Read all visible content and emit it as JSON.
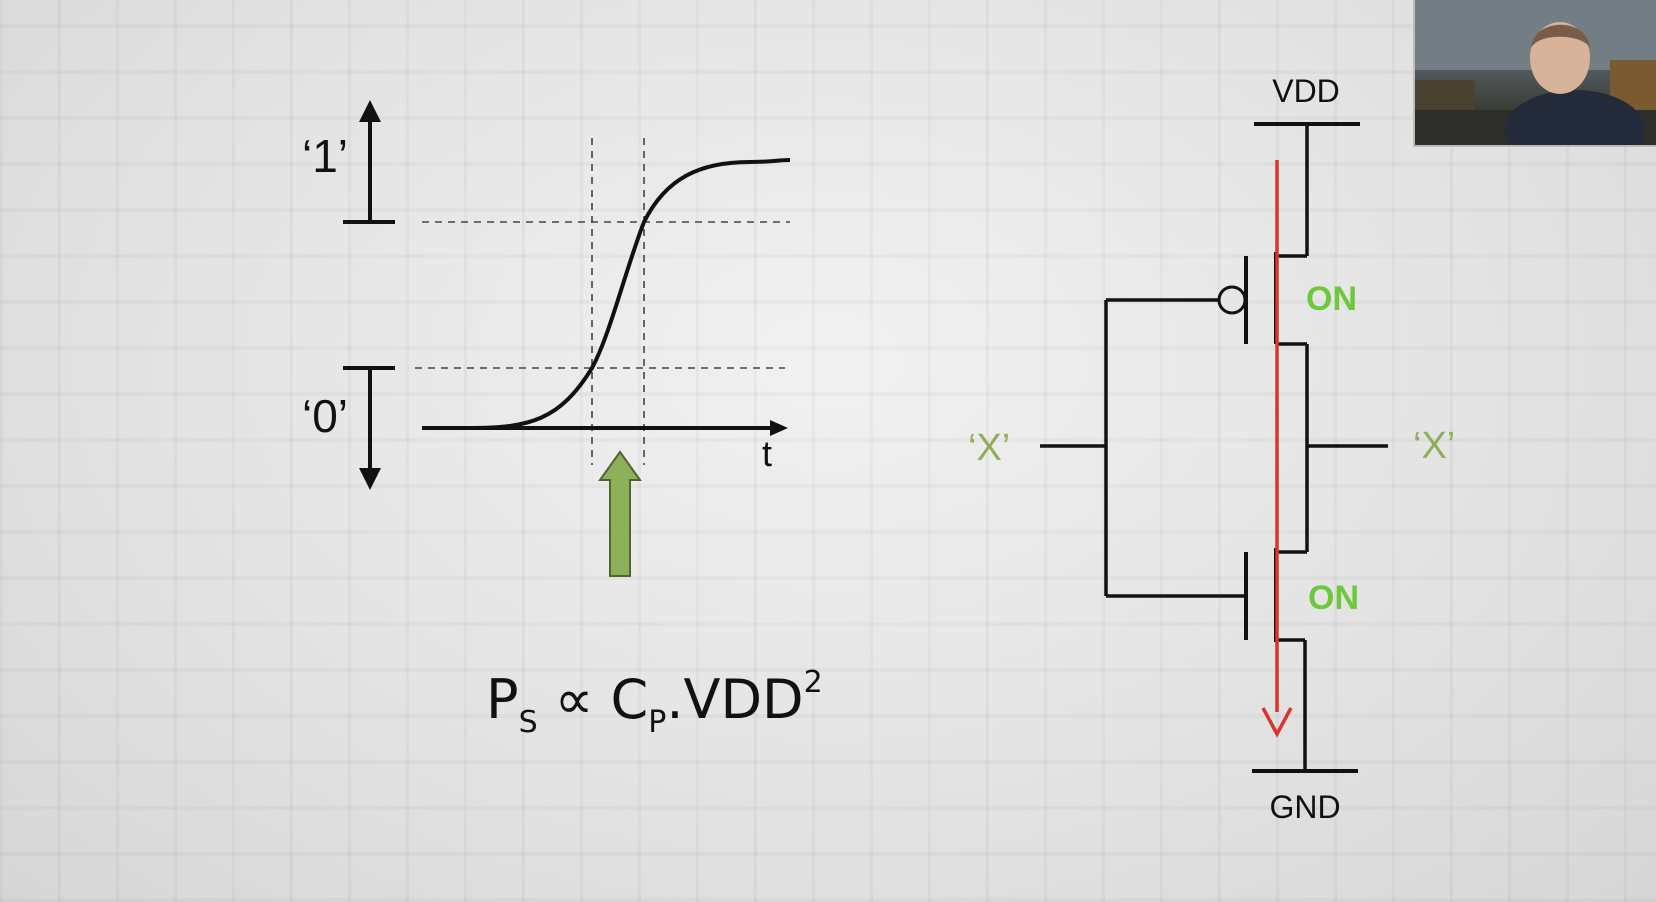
{
  "waveform": {
    "level_high": "‘1’",
    "level_low": "‘0’",
    "time_label": "t"
  },
  "formula": {
    "p": "P",
    "p_sub": "S",
    "prop": " ∝ ",
    "c": "C",
    "c_sub": "P",
    "vdd": ".VDD",
    "exp": "2"
  },
  "circuit": {
    "supply": "VDD",
    "ground": "GND",
    "input": "‘X’",
    "output": "‘X’",
    "pmos_state": "ON",
    "nmos_state": "ON"
  },
  "colors": {
    "ink": "#111111",
    "on_green": "#6cc83c",
    "signal_green": "#8fae5a",
    "arrow_fill": "#8db05a",
    "current_red": "#d9352b"
  }
}
